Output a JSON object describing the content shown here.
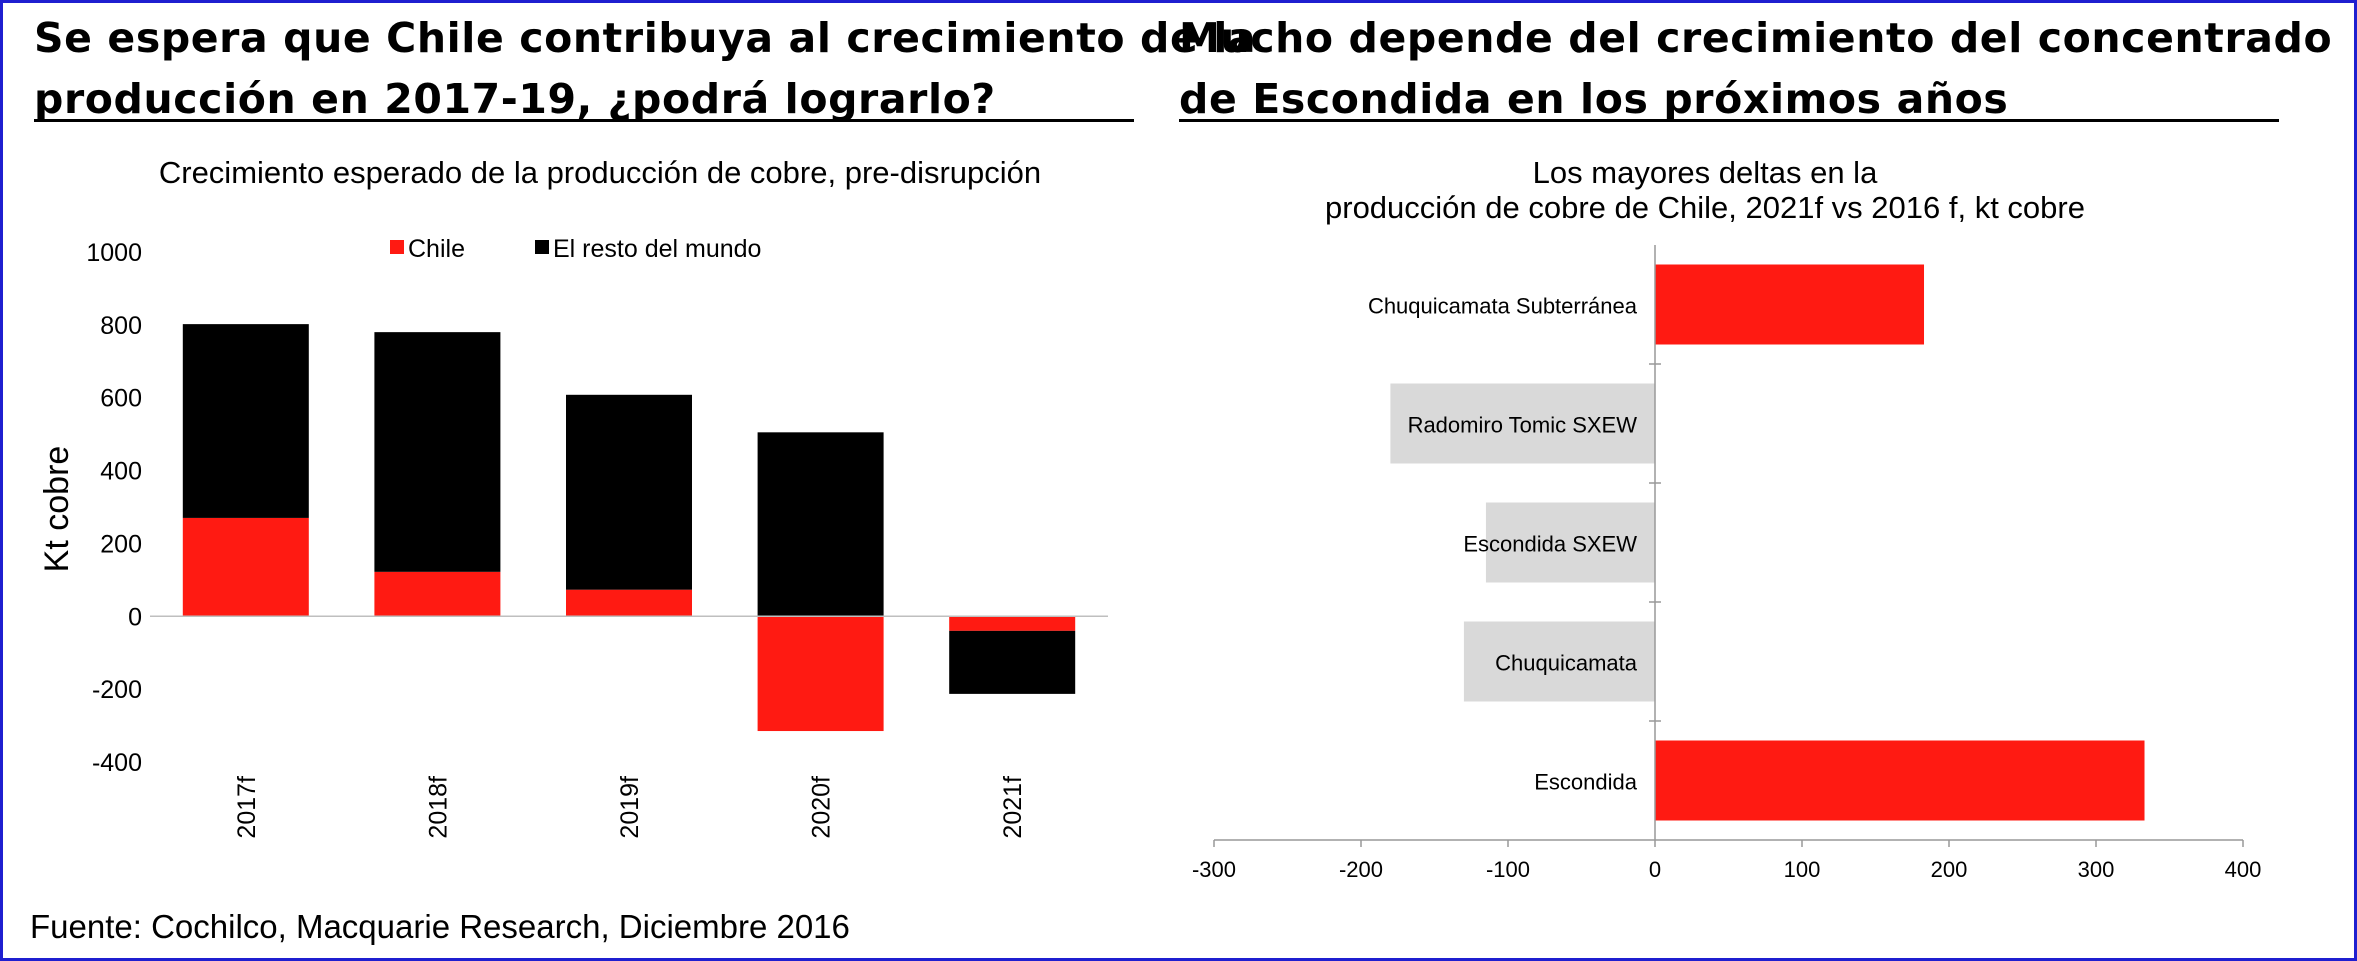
{
  "colors": {
    "chile": "#ff1a12",
    "rest": "#000000",
    "grey_bar": "#d9d9d9",
    "border": "#1f1fd0"
  },
  "left": {
    "heading_line1": "Se espera que Chile contribuya al crecimiento de la",
    "heading_line2": "producción en 2017-19, ¿podrá lograrlo?",
    "title": "Crecimiento esperado de la producción de cobre, pre-disrupción"
  },
  "right": {
    "heading_line1": "Mucho depende del crecimiento del concentrado",
    "heading_line2": "de Escondida en los próximos años",
    "title_line1": "Los mayores deltas en la",
    "title_line2": "producción de cobre de Chile, 2021f vs 2016 f, kt cobre"
  },
  "source": "Fuente: Cochilco, Macquarie Research, Diciembre 2016",
  "chart_data": [
    {
      "type": "bar",
      "stacked": true,
      "title": "Crecimiento esperado de la producción de cobre, pre-disrupción",
      "ylabel": "Kt cobre",
      "xlabel": "",
      "ylim": [
        -400,
        1000
      ],
      "yticks": [
        "1000",
        "800",
        "600",
        "400",
        "200",
        "0",
        "-200",
        "-400"
      ],
      "categories": [
        "2017f",
        "2018f",
        "2019f",
        "2020f",
        "2021f"
      ],
      "legend_position": "top",
      "series": [
        {
          "name": "Chile",
          "color": "#ff1a12",
          "values": [
            270,
            122,
            73,
            -315,
            -40
          ]
        },
        {
          "name": "El resto del mundo",
          "color": "#000000",
          "values": [
            532,
            658,
            535,
            505,
            -173
          ]
        }
      ],
      "grid": false
    },
    {
      "type": "bar",
      "orientation": "horizontal",
      "title": "Los mayores deltas en la producción de cobre de Chile, 2021f vs 2016 f, kt cobre",
      "xlim": [
        -300,
        400
      ],
      "xticks": [
        "-300",
        "-200",
        "-100",
        "0",
        "100",
        "200",
        "300",
        "400"
      ],
      "categories": [
        "Chuquicamata Subterránea",
        "Radomiro Tomic SXEW",
        "Escondida SXEW",
        "Chuquicamata",
        "Escondida"
      ],
      "values": [
        183,
        -180,
        -115,
        -130,
        333
      ],
      "colors": [
        "#ff1a12",
        "#d9d9d9",
        "#d9d9d9",
        "#d9d9d9",
        "#ff1a12"
      ],
      "grid": false
    }
  ]
}
